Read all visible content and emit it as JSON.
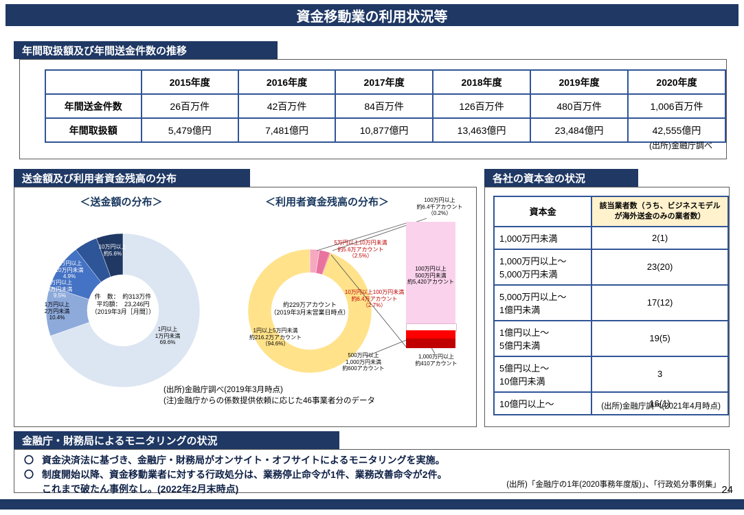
{
  "page": {
    "title": "資金移動業の利用状況等",
    "page_number": "24"
  },
  "colors": {
    "navy": "#1f3864",
    "table_border": "#2f5496",
    "header_yellow": "#fff2cc"
  },
  "section1": {
    "header": "年間取扱額及び年間送金件数の推移",
    "table": {
      "corner": "",
      "years": [
        "2015年度",
        "2016年度",
        "2017年度",
        "2018年度",
        "2019年度",
        "2020年度"
      ],
      "rows": [
        {
          "label": "年間送金件数",
          "values": [
            "26百万件",
            "42百万件",
            "84百万件",
            "126百万件",
            "480百万件",
            "1,006百万件"
          ]
        },
        {
          "label": "年間取扱額",
          "values": [
            "5,479億円",
            "7,481億円",
            "10,877億円",
            "13,463億円",
            "23,484億円",
            "42,555億円"
          ]
        }
      ]
    },
    "source": "(出所)金融庁調べ"
  },
  "section2": {
    "header": "送金額及び利用者資金残高の分布",
    "chart1": {
      "title": "＜送金額の分布＞",
      "labels": {
        "over10": "10万円以上\n約5.6%",
        "b5to10": "5万円以上\n10万円未満\n4.9%",
        "b2to5": "2万円以上\n5万円未満\n9.5%",
        "b1to2": "1万円以上\n2万円未満\n10.4%",
        "b1to1man": "1円以上\n1万円未満\n69.6%"
      },
      "center": "件　数：　約313万件\n平均額：　23,246円\n（2019年3月［月間］）"
    },
    "chart2": {
      "title": "＜利用者資金残高の分布＞",
      "labels": {
        "over100": "100万円以上\n約6.4千アカウント\n（0.2%）",
        "b5to10": "5万円以上10万円未満\n約5.6万アカウント\n（2.5%）",
        "b10to100": "10万円以上100万円未満\n約6.4万アカウント\n（2.7%）",
        "b1to5": "1円以上5万円未満\n約216.2万アカウント\n（94.6%）"
      },
      "center": "約229万アカウント\n（2019年3月末営業日時点）",
      "bar": {
        "main": "100万円以上\n500万円未満\n約5,420アカウント",
        "mid": "500万円以上\n1,000万円未満\n約600アカウント",
        "bottom": "1,000万円以上\n約410アカウント"
      }
    },
    "source1": "(出所)金融庁調べ(2019年3月時点)",
    "source2": "(注)金融庁からの係数提供依頼に応じた46事業者分のデータ"
  },
  "section3": {
    "header": "各社の資本金の状況",
    "table": {
      "col1": "資本金",
      "col2": "該当業者数（うち、ビジネスモデルが海外送金のみの業者数）",
      "rows": [
        {
          "label": "1,000万円未満",
          "value": "2(1)"
        },
        {
          "label": "1,000万円以上～\n5,000万円未満",
          "value": "23(20)"
        },
        {
          "label": "5,000万円以上～\n1億円未満",
          "value": "17(12)"
        },
        {
          "label": "1億円以上～\n5億円未満",
          "value": "19(5)"
        },
        {
          "label": "5億円以上～\n10億円未満",
          "value": "3"
        },
        {
          "label": "10億円以上～",
          "value": "16(1)"
        }
      ]
    },
    "source": "(出所)金融庁調べ(2021年4月時点)"
  },
  "section4": {
    "header": "金融庁・財務局によるモニタリングの状況",
    "bullet_marker": "〇",
    "bullets": [
      "資金決済法に基づき、金融庁・財務局がオンサイト・オフサイトによるモニタリングを実施。",
      "制度開始以降、資金移動業者に対する行政処分は、業務停止命令が1件、業務改善命令が2件。\nこれまで破たん事例なし。(2022年2月末時点)"
    ],
    "source": "(出所)「金融庁の1年(2020事務年度版)」、「行政処分事例集」"
  },
  "chart_data": [
    {
      "type": "pie",
      "title": "送金額の分布",
      "labels": [
        "1円以上1万円未満",
        "1万円以上2万円未満",
        "2万円以上5万円未満",
        "5万円以上10万円未満",
        "10万円以上"
      ],
      "values": [
        69.6,
        10.4,
        9.5,
        4.9,
        5.6
      ],
      "unit": "%",
      "colors": [
        "#dce6f2",
        "#8eaadb",
        "#4472c4",
        "#2e5597",
        "#1f3864"
      ],
      "annotations": {
        "count": "約313万件",
        "average": "23,246円",
        "period": "2019年3月（月間）"
      }
    },
    {
      "type": "pie",
      "title": "利用者資金残高の分布",
      "labels": [
        "5万円以上10万円未満",
        "10万円以上100万円未満",
        "100万円以上",
        "1円以上5万円未満"
      ],
      "values": [
        2.5,
        2.7,
        0.2,
        94.6
      ],
      "unit": "%",
      "accounts": [
        "約5.6万アカウント",
        "約6.4万アカウント",
        "約6.4千アカウント",
        "約216.2万アカウント"
      ],
      "colors": [
        "#f6a8bf",
        "#e8739e",
        "#ff0000",
        "#ffe28a"
      ],
      "total_accounts": "約229万アカウント",
      "as_of": "2019年3月末営業日時点",
      "breakdown": [
        {
          "label": "100万円以上500万円未満",
          "accounts": "約5,420アカウント",
          "color": "#fad2ec"
        },
        {
          "label": "500万円以上1,000万円未満",
          "accounts": "約600アカウント",
          "color": "#ff0000"
        },
        {
          "label": "1,000万円以上",
          "accounts": "約410アカウント",
          "color": "#c00000"
        }
      ]
    }
  ]
}
